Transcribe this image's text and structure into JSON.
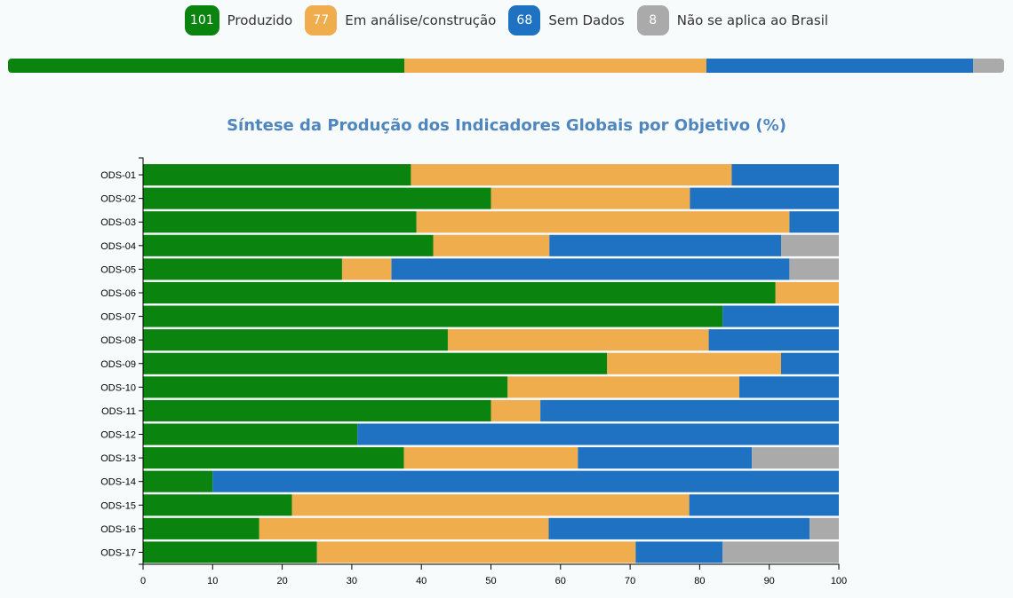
{
  "legend": [
    {
      "count": "101",
      "label": "Produzido",
      "color": "#0b840f"
    },
    {
      "count": "77",
      "label": "Em análise/construção",
      "color": "#f0ad4e"
    },
    {
      "count": "68",
      "label": "Sem Dados",
      "color": "#1f72c2"
    },
    {
      "count": "8",
      "label": "Não se aplica ao Brasil",
      "color": "#aaaaaa"
    }
  ],
  "progress_counts": [
    101,
    77,
    68,
    8
  ],
  "chart_data": {
    "type": "bar",
    "orientation": "horizontal",
    "stacked": true,
    "title": "Síntese da Produção dos Indicadores Globais por Objetivo (%)",
    "xlabel": "",
    "ylabel": "",
    "xlim": [
      0,
      100
    ],
    "xticks": [
      "0",
      "10",
      "20",
      "30",
      "40",
      "50",
      "60",
      "70",
      "80",
      "90",
      "100"
    ],
    "grid": false,
    "categories": [
      "ODS-01",
      "ODS-02",
      "ODS-03",
      "ODS-04",
      "ODS-05",
      "ODS-06",
      "ODS-07",
      "ODS-08",
      "ODS-09",
      "ODS-10",
      "ODS-11",
      "ODS-12",
      "ODS-13",
      "ODS-14",
      "ODS-15",
      "ODS-16",
      "ODS-17"
    ],
    "series": [
      {
        "name": "Produzido",
        "color": "#0b840f",
        "values": [
          38.5,
          50,
          39.3,
          41.7,
          28.6,
          90.9,
          83.3,
          43.8,
          66.7,
          52.4,
          50,
          30.8,
          37.5,
          10,
          21.4,
          16.7,
          25
        ]
      },
      {
        "name": "Em análise/construção",
        "color": "#f0ad4e",
        "values": [
          46.1,
          28.6,
          53.6,
          16.7,
          7.1,
          9.1,
          0,
          37.5,
          25,
          33.3,
          7.1,
          0,
          25,
          0,
          57.1,
          41.6,
          45.8
        ]
      },
      {
        "name": "Sem Dados",
        "color": "#1f72c2",
        "values": [
          15.4,
          21.4,
          7.1,
          33.3,
          57.2,
          0,
          16.7,
          18.7,
          8.3,
          14.3,
          42.9,
          69.2,
          25,
          90,
          21.5,
          37.5,
          12.5
        ]
      },
      {
        "name": "Não se aplica ao Brasil",
        "color": "#aaaaaa",
        "values": [
          0,
          0,
          0,
          8.3,
          7.1,
          0,
          0,
          0,
          0,
          0,
          0,
          0,
          12.5,
          0,
          0,
          4.2,
          16.7
        ]
      }
    ]
  }
}
